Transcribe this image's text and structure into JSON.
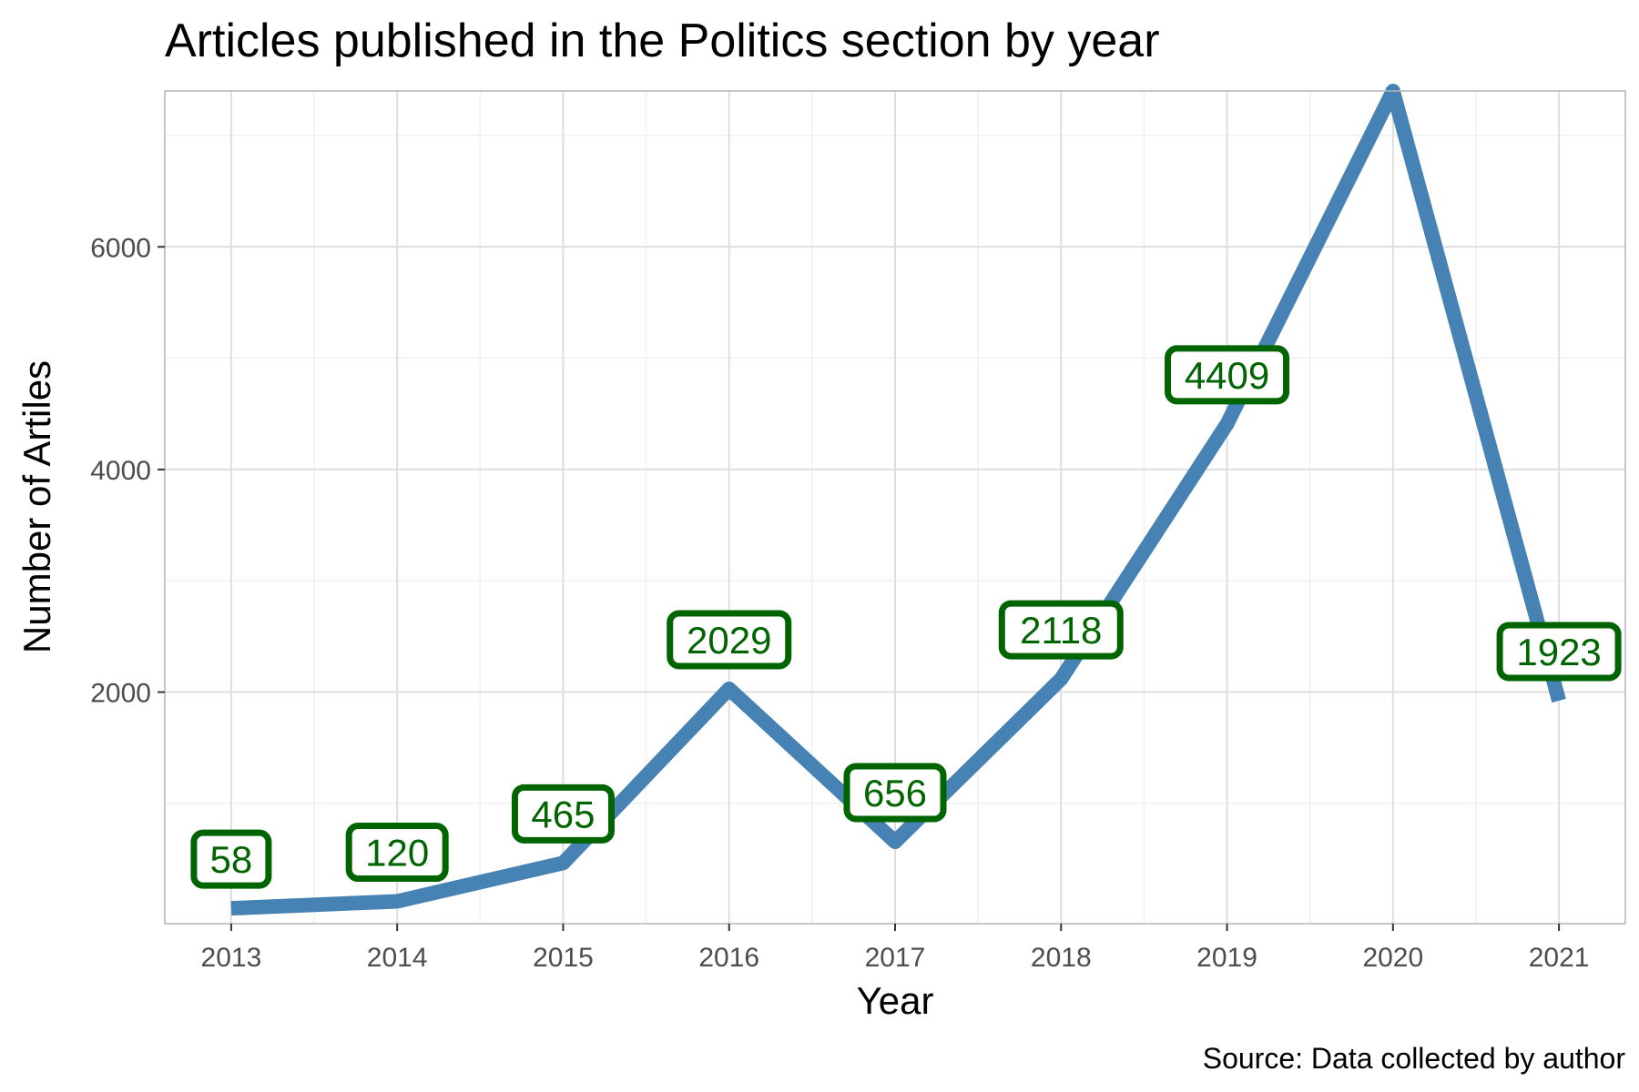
{
  "chart_data": {
    "type": "line",
    "title": "Articles published in the Politics section by year",
    "xlabel": "Year",
    "ylabel": "Number of Artiles",
    "caption": "Source: Data collected by author",
    "x": [
      2013,
      2014,
      2015,
      2016,
      2017,
      2018,
      2019,
      2020,
      2021
    ],
    "values": [
      58,
      120,
      465,
      2029,
      656,
      2118,
      4409,
      7400,
      1923
    ],
    "point_labels": [
      "58",
      "120",
      "465",
      "2029",
      "656",
      "2118",
      "4409",
      "",
      "1923"
    ],
    "xlim": [
      2012.6,
      2021.4
    ],
    "ylim": [
      -80,
      7400
    ],
    "yticks": [
      2000,
      4000,
      6000
    ],
    "yticks_minor": [
      1000,
      3000,
      5000,
      7000
    ],
    "xticks": [
      2013,
      2014,
      2015,
      2016,
      2017,
      2018,
      2019,
      2020,
      2021
    ],
    "grid": true,
    "line_color": "#4682B4",
    "label_color": "#006400"
  }
}
